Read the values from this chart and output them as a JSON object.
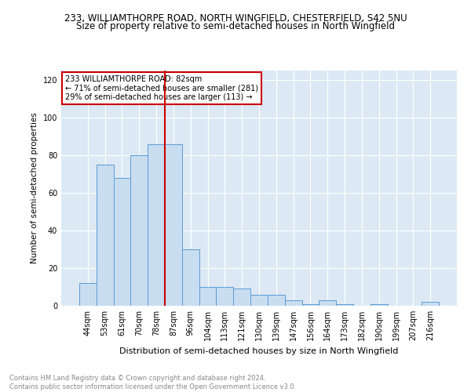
{
  "title1": "233, WILLIAMTHORPE ROAD, NORTH WINGFIELD, CHESTERFIELD, S42 5NU",
  "title2": "Size of property relative to semi-detached houses in North Wingfield",
  "xlabel": "Distribution of semi-detached houses by size in North Wingfield",
  "ylabel": "Number of semi-detached properties",
  "footnote": "Contains HM Land Registry data © Crown copyright and database right 2024.\nContains public sector information licensed under the Open Government Licence v3.0.",
  "categories": [
    "44sqm",
    "53sqm",
    "61sqm",
    "70sqm",
    "78sqm",
    "87sqm",
    "96sqm",
    "104sqm",
    "113sqm",
    "121sqm",
    "130sqm",
    "139sqm",
    "147sqm",
    "156sqm",
    "164sqm",
    "173sqm",
    "182sqm",
    "190sqm",
    "199sqm",
    "207sqm",
    "216sqm"
  ],
  "values": [
    12,
    75,
    68,
    80,
    86,
    86,
    30,
    10,
    10,
    9,
    6,
    6,
    3,
    1,
    3,
    1,
    0,
    1,
    0,
    0,
    2
  ],
  "bar_color": "#c9ddf0",
  "bar_edge_color": "#5b9bd5",
  "vline_color": "#cc0000",
  "annotation_title": "233 WILLIAMTHORPE ROAD: 82sqm",
  "annotation_line1": "← 71% of semi-detached houses are smaller (281)",
  "annotation_line2": "29% of semi-detached houses are larger (113) →",
  "annotation_box_color": "#cc0000",
  "ylim": [
    0,
    125
  ],
  "yticks": [
    0,
    20,
    40,
    60,
    80,
    100,
    120
  ],
  "background_color": "#dce9f5",
  "grid_color": "#ffffff",
  "title1_fontsize": 8.5,
  "title2_fontsize": 8.5,
  "xlabel_fontsize": 8,
  "ylabel_fontsize": 7.5,
  "tick_fontsize": 7,
  "footnote_fontsize": 6,
  "annotation_fontsize": 7
}
